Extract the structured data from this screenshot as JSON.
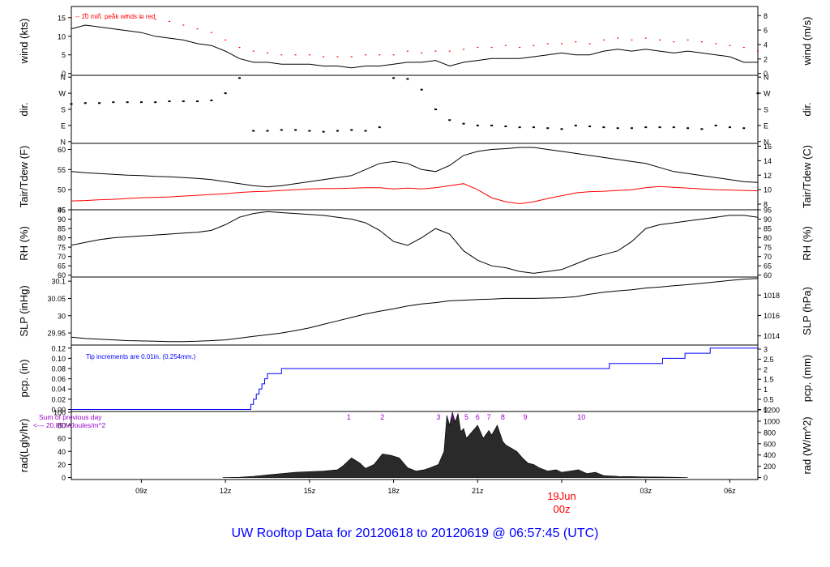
{
  "title": "UW Rooftop Data for 20120618  to  20120619 @ 06:57:45  (UTC)",
  "date_label": "19Jun",
  "date_sublabel": "00z",
  "x_tick_labels": [
    "09z",
    "12z",
    "15z",
    "18z",
    "21z",
    "00z",
    "03z",
    "06z"
  ],
  "colors": {
    "axis": "#000000",
    "peak": "#ff0000",
    "dew": "#ff0000",
    "pcp": "#0000ff",
    "annot": "#9900cc",
    "title": "#0000ff"
  },
  "chart_data": [
    {
      "id": "wind",
      "type": "line",
      "ylabel": "wind (kts)",
      "ylabel_right": "wind (m/s)",
      "ylim": [
        -0.5,
        18
      ],
      "yticks": [
        0,
        5,
        10,
        15
      ],
      "right_ylim": [
        -0.26,
        9.26
      ],
      "right_yticks": [
        0,
        2,
        4,
        6,
        8
      ],
      "annotation": "-- 10 min. peak winds in red",
      "x": [
        6.5,
        7,
        7.5,
        8,
        8.5,
        9,
        9.5,
        10,
        10.5,
        11,
        11.5,
        12,
        12.5,
        13,
        13.5,
        14,
        14.5,
        15,
        15.5,
        16,
        16.5,
        17,
        17.5,
        18,
        18.5,
        19,
        19.5,
        20,
        20.5,
        21,
        21.5,
        22,
        22.5,
        23,
        23.5,
        24,
        24.5,
        25,
        25.5,
        26,
        26.5,
        27,
        27.5,
        28,
        28.5,
        29,
        29.5,
        30,
        30.5,
        31
      ],
      "series": [
        {
          "role": "speed",
          "values": [
            12,
            13,
            12.5,
            12,
            11.5,
            11,
            10,
            9.5,
            9,
            8,
            7.5,
            6,
            4,
            3,
            3,
            2.5,
            2.5,
            2.5,
            2,
            2,
            1.5,
            2,
            2,
            2.5,
            3,
            3,
            3.5,
            2,
            3,
            3.5,
            4,
            4,
            4,
            4.5,
            5,
            5.5,
            5,
            5,
            6,
            6.5,
            6,
            6.5,
            6,
            5.5,
            6,
            5.5,
            5,
            4.5,
            3,
            3
          ]
        },
        {
          "role": "peak",
          "values": [
            15,
            16,
            16,
            16,
            15.5,
            15,
            14.5,
            14,
            13,
            12,
            11,
            9,
            7,
            6,
            5.5,
            5,
            5,
            5,
            4.5,
            4.5,
            4.5,
            5,
            5,
            5,
            6,
            5.5,
            6,
            6,
            6.5,
            7,
            7,
            7.5,
            7,
            7.5,
            8,
            8,
            8.5,
            8,
            9,
            9.5,
            9,
            9.5,
            9,
            8.5,
            9,
            8.5,
            8,
            7.5,
            7,
            6
          ]
        }
      ]
    },
    {
      "id": "dir",
      "type": "scatter",
      "ylabel": "dir.",
      "ylabel_right": "dir.",
      "ylim": [
        -10,
        370
      ],
      "ytick_labels": [
        "N",
        "E",
        "S",
        "W",
        "N"
      ],
      "ytick_values": [
        0,
        90,
        180,
        270,
        360
      ],
      "x": [
        6.5,
        7,
        7.5,
        8,
        8.5,
        9,
        9.5,
        10,
        10.5,
        11,
        11.5,
        12,
        12.5,
        13,
        13.5,
        14,
        14.5,
        15,
        15.5,
        16,
        16.5,
        17,
        17.5,
        18,
        18.5,
        19,
        19.5,
        20,
        20.5,
        21,
        21.5,
        22,
        22.5,
        23,
        23.5,
        24,
        24.5,
        25,
        25.5,
        26,
        26.5,
        27,
        27.5,
        28,
        28.5,
        29,
        29.5,
        30,
        30.5,
        31
      ],
      "values": [
        210,
        215,
        215,
        220,
        220,
        220,
        220,
        225,
        225,
        225,
        230,
        270,
        355,
        60,
        60,
        65,
        65,
        60,
        55,
        60,
        65,
        60,
        80,
        355,
        350,
        290,
        180,
        120,
        100,
        90,
        90,
        85,
        80,
        80,
        75,
        70,
        90,
        85,
        80,
        75,
        75,
        80,
        80,
        80,
        75,
        70,
        90,
        80,
        75,
        270
      ]
    },
    {
      "id": "temp",
      "type": "line",
      "ylabel": "Tair/Tdew (F)",
      "ylabel_right": "Tair/Tdew (C)",
      "ylim": [
        45,
        61.5
      ],
      "yticks": [
        45,
        50,
        55,
        60
      ],
      "right_ylim": [
        7.22,
        16.39
      ],
      "right_yticks": [
        8,
        10,
        12,
        14,
        16
      ],
      "x": [
        6.5,
        7,
        7.5,
        8,
        8.5,
        9,
        9.5,
        10,
        10.5,
        11,
        11.5,
        12,
        12.5,
        13,
        13.5,
        14,
        14.5,
        15,
        15.5,
        16,
        16.5,
        17,
        17.5,
        18,
        18.5,
        19,
        19.5,
        20,
        20.5,
        21,
        21.5,
        22,
        22.5,
        23,
        23.5,
        24,
        24.5,
        25,
        25.5,
        26,
        26.5,
        27,
        27.5,
        28,
        28.5,
        29,
        29.5,
        30,
        30.5,
        31
      ],
      "series": [
        {
          "name": "Tair",
          "values": [
            54.5,
            54.2,
            54,
            53.8,
            53.6,
            53.5,
            53.3,
            53.2,
            53,
            52.8,
            52.5,
            52,
            51.5,
            51,
            50.7,
            51,
            51.5,
            52,
            52.5,
            53,
            53.5,
            55,
            56.5,
            57,
            56.5,
            55,
            54.5,
            56,
            58.5,
            59.5,
            60,
            60.2,
            60.5,
            60.5,
            60,
            59.5,
            59,
            58.5,
            58,
            57.5,
            57,
            56.5,
            55.5,
            54.5,
            54,
            53.5,
            53,
            52.5,
            52,
            51.8
          ]
        },
        {
          "name": "Tdew",
          "values": [
            47.2,
            47.3,
            47.5,
            47.6,
            47.8,
            48,
            48.1,
            48.2,
            48.4,
            48.6,
            48.8,
            49,
            49.3,
            49.5,
            49.6,
            49.8,
            50,
            50.2,
            50.3,
            50.3,
            50.4,
            50.5,
            50.5,
            50.2,
            50.4,
            50.2,
            50.5,
            51,
            51.5,
            50,
            48,
            47,
            46.5,
            47,
            47.8,
            48.5,
            49.2,
            49.5,
            49.6,
            49.8,
            50,
            50.5,
            50.8,
            50.6,
            50.4,
            50.2,
            50,
            49.9,
            49.8,
            49.7
          ]
        }
      ]
    },
    {
      "id": "rh",
      "type": "line",
      "ylabel": "RH (%)",
      "ylabel_right": "RH (%)",
      "ylim": [
        59,
        95
      ],
      "yticks": [
        60,
        65,
        70,
        75,
        80,
        85,
        90,
        95
      ],
      "right_ylim": [
        59,
        95
      ],
      "right_yticks": [
        60,
        65,
        70,
        75,
        80,
        85,
        90,
        95
      ],
      "x": [
        6.5,
        7,
        7.5,
        8,
        8.5,
        9,
        9.5,
        10,
        10.5,
        11,
        11.5,
        12,
        12.5,
        13,
        13.5,
        14,
        14.5,
        15,
        15.5,
        16,
        16.5,
        17,
        17.5,
        18,
        18.5,
        19,
        19.5,
        20,
        20.5,
        21,
        21.5,
        22,
        22.5,
        23,
        23.5,
        24,
        24.5,
        25,
        25.5,
        26,
        26.5,
        27,
        27.5,
        28,
        28.5,
        29,
        29.5,
        30,
        30.5,
        31
      ],
      "values": [
        76,
        77.5,
        79,
        80,
        80.5,
        81,
        81.5,
        82,
        82.5,
        83,
        84,
        87,
        91,
        93,
        94,
        93.5,
        93,
        92.5,
        92,
        91,
        90,
        88,
        84,
        78,
        76,
        80,
        85,
        82,
        73,
        68,
        65,
        64,
        62,
        61,
        62,
        63,
        66,
        69,
        71,
        73,
        78,
        85,
        87,
        88,
        89,
        90,
        91,
        92,
        92,
        91
      ]
    },
    {
      "id": "slp",
      "type": "line",
      "ylabel": "SLP (inHg)",
      "ylabel_right": "SLP (hPa)",
      "ylim": [
        29.915,
        30.112
      ],
      "yticks": [
        29.95,
        30.0,
        30.05,
        30.1
      ],
      "right_ylim": [
        1013.1,
        1019.77
      ],
      "right_yticks": [
        1014,
        1016,
        1018
      ],
      "x": [
        6.5,
        7,
        7.5,
        8,
        8.5,
        9,
        9.5,
        10,
        10.5,
        11,
        11.5,
        12,
        12.5,
        13,
        13.5,
        14,
        14.5,
        15,
        15.5,
        16,
        16.5,
        17,
        17.5,
        18,
        18.5,
        19,
        19.5,
        20,
        20.5,
        21,
        21.5,
        22,
        22.5,
        23,
        23.5,
        24,
        24.5,
        25,
        25.5,
        26,
        26.5,
        27,
        27.5,
        28,
        28.5,
        29,
        29.5,
        30,
        30.5,
        31
      ],
      "values": [
        29.938,
        29.934,
        29.932,
        29.93,
        29.928,
        29.927,
        29.926,
        29.925,
        29.925,
        29.926,
        29.928,
        29.93,
        29.935,
        29.94,
        29.945,
        29.95,
        29.957,
        29.965,
        29.975,
        29.985,
        29.995,
        30.005,
        30.013,
        30.02,
        30.028,
        30.034,
        30.038,
        30.043,
        30.045,
        30.047,
        30.048,
        30.05,
        30.05,
        30.05,
        30.051,
        30.052,
        30.055,
        30.062,
        30.068,
        30.072,
        30.075,
        30.08,
        30.083,
        30.087,
        30.09,
        30.094,
        30.098,
        30.102,
        30.106,
        30.108
      ]
    },
    {
      "id": "pcp",
      "type": "line",
      "ylabel": "pcp. (in)",
      "ylabel_right": "pcp. (mm)",
      "ylim": [
        -0.004,
        0.126
      ],
      "yticks": [
        0,
        0.02,
        0.04,
        0.06,
        0.08,
        0.1,
        0.12
      ],
      "ytick_labels": [
        "0.00",
        "0.02",
        "0.04",
        "0.06",
        "0.08",
        "0.10",
        "0.12"
      ],
      "right_ylim": [
        -0.102,
        3.2
      ],
      "right_yticks": [
        0,
        0.5,
        1,
        1.5,
        2,
        2.5,
        3
      ],
      "right_ytick_labels": [
        "0",
        "0.5",
        "1",
        "1.5",
        "2",
        "2.5",
        "3"
      ],
      "annotation": "Tip increments are 0.01in. (0.254mm.)",
      "x": [
        6.5,
        12.8,
        12.9,
        13.0,
        13.1,
        13.2,
        13.3,
        13.4,
        13.5,
        13.9,
        14.0,
        25.6,
        25.7,
        27.5,
        27.6,
        28.3,
        28.4,
        29.2,
        29.3,
        31
      ],
      "values": [
        0,
        0,
        0.01,
        0.02,
        0.03,
        0.04,
        0.05,
        0.06,
        0.07,
        0.07,
        0.08,
        0.08,
        0.09,
        0.09,
        0.1,
        0.1,
        0.11,
        0.11,
        0.12,
        0.12
      ]
    },
    {
      "id": "rad",
      "type": "area",
      "ylabel": "rad(Lgly/hr)",
      "ylabel_right": "rad (W/m^2)",
      "ylim": [
        -3,
        101
      ],
      "yticks": [
        0,
        20,
        40,
        60,
        80,
        100
      ],
      "right_ylim": [
        -35,
        1172
      ],
      "right_yticks": [
        0,
        200,
        400,
        600,
        800,
        1000,
        1200
      ],
      "annotation_line1": "Sum of previous day",
      "annotation_line2": "<--- 20.89 MJoules/m^2",
      "markers": [
        {
          "label": "1",
          "x": 16.4
        },
        {
          "label": "2",
          "x": 17.6
        },
        {
          "label": "3",
          "x": 19.6
        },
        {
          "label": "4",
          "x": 20.1
        },
        {
          "label": "5",
          "x": 20.6
        },
        {
          "label": "6",
          "x": 21.0
        },
        {
          "label": "7",
          "x": 21.4
        },
        {
          "label": "8",
          "x": 21.9
        },
        {
          "label": "9",
          "x": 22.7
        },
        {
          "label": "10",
          "x": 24.7
        }
      ],
      "x": [
        11.9,
        12.5,
        13,
        13.5,
        14,
        14.5,
        15,
        15.5,
        16,
        16.2,
        16.5,
        16.8,
        17,
        17.3,
        17.6,
        17.9,
        18.2,
        18.5,
        18.8,
        19.1,
        19.3,
        19.6,
        19.8,
        19.9,
        20,
        20.1,
        20.2,
        20.3,
        20.4,
        20.5,
        20.6,
        20.8,
        21,
        21.2,
        21.4,
        21.5,
        21.7,
        21.9,
        22,
        22.2,
        22.4,
        22.6,
        22.8,
        23,
        23.2,
        23.5,
        23.8,
        24,
        24.3,
        24.6,
        24.9,
        25.2,
        25.5,
        26,
        26.5,
        27,
        27.5,
        28,
        28.5
      ],
      "values": [
        0,
        0.5,
        2,
        4,
        6,
        8,
        9,
        10,
        12,
        18,
        30,
        22,
        14,
        20,
        36,
        34,
        30,
        15,
        10,
        12,
        15,
        20,
        40,
        95,
        80,
        100,
        85,
        98,
        70,
        75,
        60,
        70,
        80,
        60,
        72,
        65,
        80,
        55,
        50,
        45,
        40,
        30,
        22,
        20,
        15,
        10,
        12,
        8,
        10,
        12,
        6,
        8,
        3,
        2,
        1.5,
        1,
        0.8,
        0.5,
        0
      ]
    }
  ]
}
